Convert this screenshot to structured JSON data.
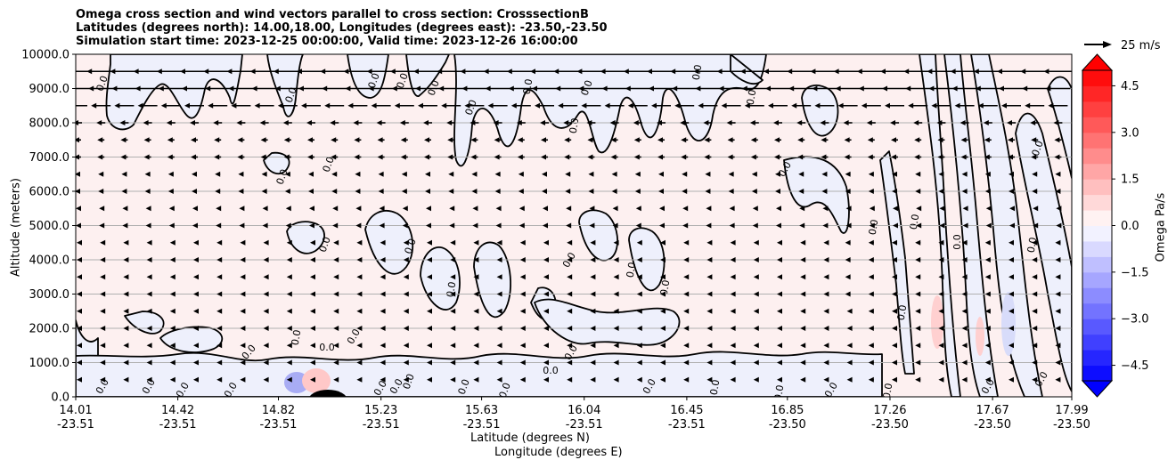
{
  "chart_data": {
    "type": "contour",
    "title_lines": [
      "Omega cross section and wind vectors parallel to cross section: CrosssectionB",
      "Latitudes (degrees north): 14.00,18.00, Longitudes (degrees east): -23.50,-23.50",
      "Simulation start time: 2023-12-25 00:00:00, Valid time: 2023-12-26 16:00:00"
    ],
    "ylabel": "Altitude (meters)",
    "xlabel_lat": "Latitude (degrees N)",
    "xlabel_lon": "Longitude (degrees E)",
    "ylim": [
      0,
      10000
    ],
    "y_ticks": [
      "0.0",
      "1000.0",
      "2000.0",
      "3000.0",
      "4000.0",
      "5000.0",
      "6000.0",
      "7000.0",
      "8000.0",
      "9000.0",
      "10000.0"
    ],
    "x_ticks_lat": [
      "14.01",
      "14.42",
      "14.82",
      "15.23",
      "15.63",
      "16.04",
      "16.45",
      "16.85",
      "17.26",
      "17.67",
      "17.99"
    ],
    "x_ticks_lon": [
      "-23.51",
      "-23.51",
      "-23.51",
      "-23.51",
      "-23.51",
      "-23.51",
      "-23.51",
      "-23.50",
      "-23.50",
      "-23.50",
      "-23.50"
    ],
    "x_tick_fracs": [
      0,
      0.1025,
      0.2035,
      0.3065,
      0.4075,
      0.5105,
      0.6135,
      0.7145,
      0.8175,
      0.9205,
      1.0
    ],
    "grid": "horizontal",
    "contour_label": "0.0",
    "colorbar": {
      "label": "Omega Pa/s",
      "range": [
        -5.0,
        5.0
      ],
      "ticks": [
        "4.5",
        "3.0",
        "1.5",
        "0.0",
        "−1.5",
        "−3.0",
        "−4.5"
      ],
      "tick_values": [
        4.5,
        3.0,
        1.5,
        0.0,
        -1.5,
        -3.0,
        -4.5
      ],
      "colormap": "bwr",
      "extend": "both"
    },
    "quiver_key": {
      "label": "25 m/s",
      "speed": 25
    },
    "background_color": "#fdf0f0",
    "negative_region_color": "#eef0fc",
    "line_color": "#000000"
  }
}
